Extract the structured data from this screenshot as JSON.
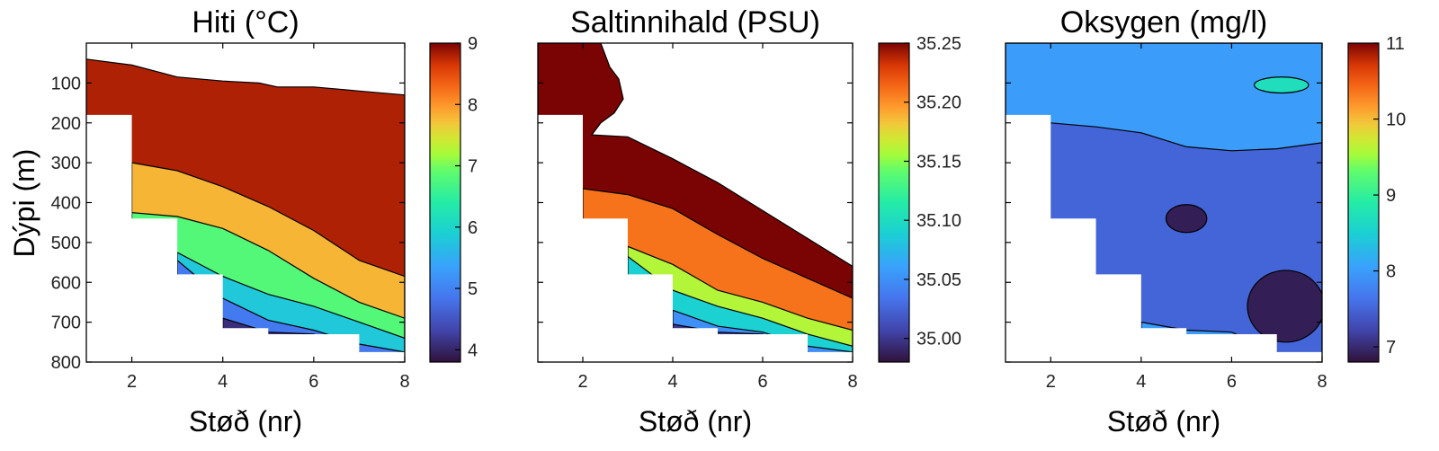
{
  "figure": {
    "ylabel": "Dýpi (m)"
  },
  "chart_data": [
    {
      "type": "heatmap",
      "title": "Hiti (°C)",
      "xlabel": "Støð (nr)",
      "ylabel": "Dýpi (m)",
      "xlim": [
        1,
        8
      ],
      "ylim": [
        800,
        0
      ],
      "y_reversed": true,
      "xticks": [
        "2",
        "4",
        "6",
        "8"
      ],
      "yticks": [
        "100",
        "200",
        "300",
        "400",
        "500",
        "600",
        "700",
        "800"
      ],
      "xtick_values": [
        2,
        4,
        6,
        8
      ],
      "ytick_values": [
        100,
        200,
        300,
        400,
        500,
        600,
        700,
        800
      ],
      "colorbar": {
        "min": 3.8,
        "max": 9.0,
        "tick_values": [
          4,
          5,
          6,
          7,
          8,
          9
        ],
        "tick_labels": [
          "4",
          "5",
          "6",
          "7",
          "8",
          "9"
        ]
      },
      "bottom_depth": [
        [
          1,
          180
        ],
        [
          2,
          440
        ],
        [
          3,
          580
        ],
        [
          4,
          715
        ],
        [
          5,
          730
        ],
        [
          6,
          730
        ],
        [
          7,
          775
        ],
        [
          8,
          775
        ]
      ],
      "bands": [
        {
          "value": 8.8,
          "depth": [
            [
              1,
              40
            ],
            [
              2,
              55
            ],
            [
              3,
              85
            ],
            [
              4,
              95
            ],
            [
              4.8,
              100
            ],
            [
              5.2,
              110
            ],
            [
              6,
              110
            ],
            [
              7,
              120
            ],
            [
              8,
              130
            ]
          ]
        },
        {
          "value": 7.8,
          "depth": [
            [
              2,
              300
            ],
            [
              3,
              320
            ],
            [
              4,
              360
            ],
            [
              5,
              410
            ],
            [
              6,
              470
            ],
            [
              7,
              545
            ],
            [
              8,
              585
            ]
          ]
        },
        {
          "value": 6.8,
          "depth": [
            [
              2,
              425
            ],
            [
              3,
              435
            ],
            [
              4,
              465
            ],
            [
              5,
              520
            ],
            [
              6,
              590
            ],
            [
              7,
              650
            ],
            [
              8,
              690
            ]
          ]
        },
        {
          "value": 5.8,
          "depth": [
            [
              3,
              525
            ],
            [
              4,
              585
            ],
            [
              5,
              630
            ],
            [
              6,
              660
            ],
            [
              7,
              700
            ],
            [
              8,
              740
            ]
          ]
        },
        {
          "value": 4.9,
          "depth": [
            [
              3,
              545
            ],
            [
              4,
              640
            ],
            [
              5,
              695
            ],
            [
              6,
              720
            ],
            [
              7,
              755
            ],
            [
              8,
              775
            ]
          ]
        },
        {
          "value": 4.1,
          "depth": [
            [
              4,
              690
            ],
            [
              5,
              725
            ],
            [
              6,
              730
            ],
            [
              7,
              775
            ]
          ]
        }
      ]
    },
    {
      "type": "heatmap",
      "title": "Saltinnihald (PSU)",
      "xlabel": "Støð (nr)",
      "xlim": [
        1,
        8
      ],
      "ylim": [
        800,
        0
      ],
      "y_reversed": true,
      "xticks": [
        "2",
        "4",
        "6",
        "8"
      ],
      "xtick_values": [
        2,
        4,
        6,
        8
      ],
      "ytick_values": [
        100,
        200,
        300,
        400,
        500,
        600,
        700,
        800
      ],
      "colorbar": {
        "min": 34.98,
        "max": 35.25,
        "tick_values": [
          35.0,
          35.05,
          35.1,
          35.15,
          35.2,
          35.25
        ],
        "tick_labels": [
          "35.00",
          "35.05",
          "35.10",
          "35.15",
          "35.20",
          "35.25"
        ]
      },
      "bottom_depth": [
        [
          1,
          180
        ],
        [
          2,
          440
        ],
        [
          3,
          580
        ],
        [
          4,
          715
        ],
        [
          5,
          730
        ],
        [
          6,
          730
        ],
        [
          7,
          775
        ],
        [
          8,
          775
        ]
      ],
      "bands": [
        {
          "value": 35.25,
          "depth": [
            [
              1,
              0
            ],
            [
              2.4,
              0
            ],
            [
              2.6,
              60
            ],
            [
              2.8,
              90
            ],
            [
              2.9,
              140
            ],
            [
              2.7,
              175
            ],
            [
              2.4,
              200
            ],
            [
              2.2,
              230
            ],
            [
              3,
              235
            ],
            [
              4,
              290
            ],
            [
              5,
              350
            ],
            [
              6,
              420
            ],
            [
              7,
              490
            ],
            [
              8,
              560
            ]
          ]
        },
        {
          "value": 35.21,
          "depth": [
            [
              2,
              365
            ],
            [
              3,
              380
            ],
            [
              4,
              415
            ],
            [
              5,
              480
            ],
            [
              6,
              540
            ],
            [
              7,
              590
            ],
            [
              8,
              640
            ]
          ]
        },
        {
          "value": 35.16,
          "depth": [
            [
              3,
              510
            ],
            [
              4,
              555
            ],
            [
              5,
              620
            ],
            [
              6,
              650
            ],
            [
              7,
              690
            ],
            [
              8,
              720
            ]
          ]
        },
        {
          "value": 35.09,
          "depth": [
            [
              3,
              535
            ],
            [
              4,
              620
            ],
            [
              5,
              660
            ],
            [
              6,
              690
            ],
            [
              7,
              730
            ],
            [
              8,
              760
            ]
          ]
        },
        {
          "value": 35.05,
          "depth": [
            [
              4,
              670
            ],
            [
              5,
              710
            ],
            [
              6,
              725
            ],
            [
              7,
              760
            ],
            [
              8,
              775
            ]
          ]
        },
        {
          "value": 35.0,
          "depth": [
            [
              4,
              705
            ],
            [
              5,
              725
            ],
            [
              6,
              730
            ],
            [
              7,
              775
            ]
          ]
        }
      ]
    },
    {
      "type": "heatmap",
      "title": "Oksygen (mg/l)",
      "xlabel": "Støð (nr)",
      "xlim": [
        1,
        8
      ],
      "ylim": [
        800,
        0
      ],
      "y_reversed": true,
      "xticks": [
        "2",
        "4",
        "6",
        "8"
      ],
      "xtick_values": [
        2,
        4,
        6,
        8
      ],
      "ytick_values": [
        100,
        200,
        300,
        400,
        500,
        600,
        700,
        800
      ],
      "colorbar": {
        "min": 6.8,
        "max": 11.0,
        "tick_values": [
          7,
          8,
          9,
          10,
          11
        ],
        "tick_labels": [
          "7",
          "8",
          "9",
          "10",
          "11"
        ]
      },
      "bottom_depth": [
        [
          1,
          180
        ],
        [
          2,
          440
        ],
        [
          3,
          580
        ],
        [
          4,
          715
        ],
        [
          5,
          730
        ],
        [
          6,
          730
        ],
        [
          7,
          775
        ],
        [
          8,
          775
        ]
      ],
      "bands": [
        {
          "value": 8.0,
          "depth": [
            [
              1,
              0
            ],
            [
              8,
              0
            ]
          ]
        },
        {
          "value": 7.5,
          "depth": [
            [
              1,
              185
            ],
            [
              2,
              200
            ],
            [
              3,
              210
            ],
            [
              4,
              225
            ],
            [
              5,
              260
            ],
            [
              6,
              270
            ],
            [
              7,
              265
            ],
            [
              8,
              250
            ]
          ]
        },
        {
          "value": 8.0,
          "depth": [
            [
              4,
              700
            ],
            [
              5,
              720
            ],
            [
              6,
              725
            ],
            [
              7,
              775
            ]
          ]
        }
      ],
      "blobs": [
        {
          "value": 8.7,
          "x": 7.1,
          "y": 105,
          "rx": 0.6,
          "ry": 20
        },
        {
          "value": 6.9,
          "x": 5.0,
          "y": 440,
          "rx": 0.45,
          "ry": 35
        },
        {
          "value": 6.9,
          "x": 7.2,
          "y": 660,
          "rx": 0.85,
          "ry": 90
        }
      ]
    }
  ]
}
